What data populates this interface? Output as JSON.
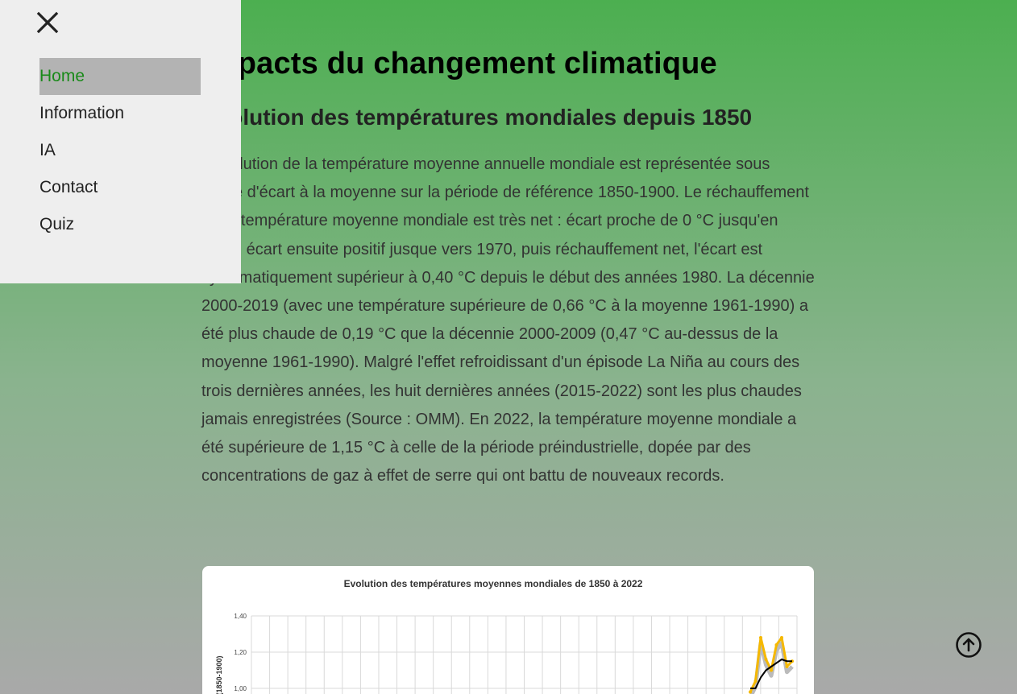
{
  "sidebar": {
    "close_icon": "close-icon",
    "items": [
      {
        "label": "Home",
        "active": true
      },
      {
        "label": "Information",
        "active": false
      },
      {
        "label": "IA",
        "active": false
      },
      {
        "label": "Contact",
        "active": false
      },
      {
        "label": "Quiz",
        "active": false
      }
    ]
  },
  "main": {
    "title": "Impacts du changement climatique",
    "section_title": "Evolution des températures mondiales depuis 1850",
    "paragraph": "L'évolution de la température moyenne annuelle mondiale est représentée sous forme d'écart à la moyenne sur la période de référence 1850-1900. Le réchauffement de la température moyenne mondiale est très net : écart proche de 0 °C jusqu'en 1920, écart ensuite positif jusque vers 1970, puis réchauffement net, l'écart est systématiquement supérieur à 0,40 °C depuis le début des années 1980. La décennie 2000-2019 (avec une température supérieure de 0,66 °C à la moyenne 1961-1990) a été plus chaude de 0,19 °C que la décennie 2000-2009 (0,47 °C au-dessus de la moyenne 1961-1990). Malgré l'effet refroidissant d'un épisode La Niña au cours des trois dernières années, les huit dernières années (2015-2022) sont les plus chaudes jamais enregistrées (Source : OMM). En 2022, la température moyenne mondiale a été supérieure de 1,15 °C à celle de la période préindustrielle, dopée par des concentrations de gaz à effet de serre qui ont battu de nouveaux records."
  },
  "chart": {
    "title": "Evolution des températures moyennes mondiales de 1850 à 2022",
    "ylabel": "(1850-1900)",
    "y_ticks": [
      "1,40",
      "1,20",
      "1,00"
    ],
    "line_color": "#000000",
    "band_color": "#f5b800",
    "band_fill": "#bbbbbb"
  },
  "chart_data": {
    "type": "line",
    "title": "Evolution des températures moyennes mondiales de 1850 à 2022",
    "ylabel": "(1850-1900)",
    "y_ticks": [
      1.4,
      1.2,
      1.0
    ],
    "ylim": [
      1.0,
      1.4
    ],
    "grid": true,
    "series": [
      {
        "x": [
          2014,
          2015,
          2016,
          2017,
          2018,
          2019,
          2020,
          2021,
          2022
        ],
        "values": [
          1.0,
          1.0,
          1.06,
          1.1,
          1.12,
          1.14,
          1.16,
          1.15,
          1.15
        ]
      },
      {
        "x": [
          2014,
          2015,
          2016,
          2017,
          2018,
          2019,
          2020,
          2021,
          2022
        ],
        "values": [
          0.98,
          1.04,
          1.28,
          1.16,
          1.1,
          1.24,
          1.28,
          1.12,
          1.15
        ]
      }
    ]
  },
  "scroll_top": {
    "icon": "arrow-up-circle-icon"
  }
}
